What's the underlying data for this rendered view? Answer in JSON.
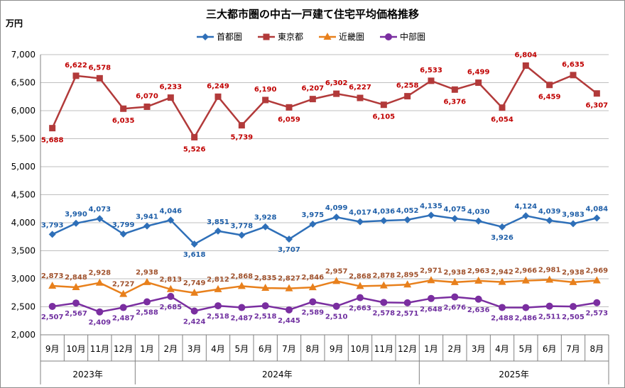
{
  "chart_data": {
    "type": "line",
    "title": "三大都市圏の中古一戸建て住宅平均価格推移",
    "ylabel": "万円",
    "ylim": [
      2000,
      7000
    ],
    "yticks": [
      "2,000",
      "2,500",
      "3,000",
      "3,500",
      "4,000",
      "4,500",
      "5,000",
      "5,500",
      "6,000",
      "6,500",
      "7,000"
    ],
    "categories": [
      "9月",
      "10月",
      "11月",
      "12月",
      "1月",
      "2月",
      "3月",
      "4月",
      "5月",
      "6月",
      "7月",
      "8月",
      "9月",
      "10月",
      "11月",
      "12月",
      "1月",
      "2月",
      "3月",
      "4月",
      "5月",
      "6月",
      "7月",
      "8月"
    ],
    "year_groups": [
      {
        "label": "2023年",
        "count": 4
      },
      {
        "label": "2024年",
        "count": 12
      },
      {
        "label": "2025年",
        "count": 8
      }
    ],
    "legend_position": "top",
    "grid": "horizontal",
    "series": [
      {
        "name": "首都圏",
        "color": "#2e6fb8",
        "marker": "diamond",
        "values": [
          3793,
          3990,
          4073,
          3799,
          3941,
          4046,
          3618,
          3851,
          3778,
          3928,
          3707,
          3975,
          4099,
          4017,
          4036,
          4052,
          4135,
          4075,
          4030,
          3926,
          4124,
          4039,
          3983,
          4084
        ],
        "labels": [
          "3,793",
          "3,990",
          "4,073",
          "3,799",
          "3,941",
          "4,046",
          "3,618",
          "3,851",
          "3,778",
          "3,928",
          "3,707",
          "3,975",
          "4,099",
          "4,017",
          "4,036",
          "4,052",
          "4,135",
          "4,075",
          "4,030",
          "3,926",
          "4,124",
          "4,039",
          "3,983",
          "4,084"
        ],
        "label_color": "#1f5fa8"
      },
      {
        "name": "東京都",
        "color": "#b23a3a",
        "marker": "square",
        "values": [
          5688,
          6622,
          6578,
          6035,
          6070,
          6233,
          5526,
          6249,
          5739,
          6190,
          6059,
          6207,
          6302,
          6227,
          6105,
          6258,
          6533,
          6376,
          6499,
          6054,
          6804,
          6459,
          6635,
          6307
        ],
        "labels": [
          "5,688",
          "6,622",
          "6,578",
          "6,035",
          "6,070",
          "6,233",
          "5,526",
          "6,249",
          "5,739",
          "6,190",
          "6,059",
          "6,207",
          "6,302",
          "6,227",
          "6,105",
          "6,258",
          "6,533",
          "6,376",
          "6,499",
          "6,054",
          "6,804",
          "6,459",
          "6,635",
          "6,307"
        ],
        "label_color": "#c00000"
      },
      {
        "name": "近畿圏",
        "color": "#e8801c",
        "marker": "triangle",
        "values": [
          2873,
          2848,
          2928,
          2727,
          2938,
          2813,
          2749,
          2812,
          2868,
          2835,
          2827,
          2846,
          2957,
          2868,
          2878,
          2895,
          2971,
          2938,
          2963,
          2942,
          2966,
          2981,
          2938,
          2969
        ],
        "labels": [
          "2,873",
          "2,848",
          "2,928",
          "2,727",
          "2,938",
          "2,813",
          "2,749",
          "2,812",
          "2,868",
          "2,835",
          "2,827",
          "2,846",
          "2,957",
          "2,868",
          "2,878",
          "2,895",
          "2,971",
          "2,938",
          "2,963",
          "2,942",
          "2,966",
          "2,981",
          "2,938",
          "2,969"
        ],
        "label_color": "#a0522d"
      },
      {
        "name": "中部圏",
        "color": "#7a2ea0",
        "marker": "circle",
        "values": [
          2507,
          2567,
          2409,
          2487,
          2588,
          2685,
          2424,
          2518,
          2487,
          2518,
          2445,
          2589,
          2510,
          2663,
          2578,
          2571,
          2648,
          2676,
          2636,
          2488,
          2486,
          2511,
          2505,
          2573
        ],
        "labels": [
          "2,507",
          "2,567",
          "2,409",
          "2,487",
          "2,588",
          "2,685",
          "2,424",
          "2,518",
          "2,487",
          "2,518",
          "2,445",
          "2,589",
          "2,510",
          "2,663",
          "2,578",
          "2,571",
          "2,648",
          "2,676",
          "2,636",
          "2,488",
          "2,486",
          "2,511",
          "2,505",
          "2,573"
        ],
        "label_color": "#7030a0"
      }
    ]
  }
}
